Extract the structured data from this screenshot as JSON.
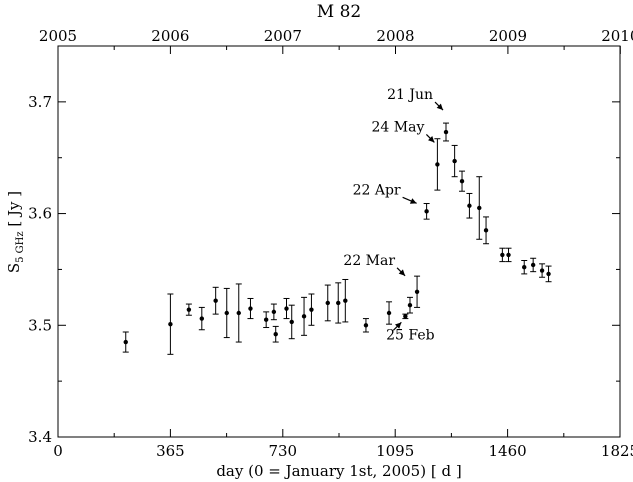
{
  "chart_data": {
    "type": "scatter",
    "title": "M 82",
    "xlabel": "day (0 = January 1st, 2005) [ d ]",
    "ylabel_main": "S",
    "ylabel_sub": "5 GHz",
    "ylabel_unit": " [ Jy ]",
    "xlim": [
      0,
      1825
    ],
    "ylim": [
      3.4,
      3.75
    ],
    "x_ticks": [
      0,
      365,
      730,
      1095,
      1460,
      1825
    ],
    "x_tick_labels": [
      "0",
      "365",
      "730",
      "1095",
      "1460",
      "1825"
    ],
    "y_ticks": [
      3.4,
      3.5,
      3.6,
      3.7
    ],
    "y_tick_labels": [
      "3.4",
      "3.5",
      "3.6",
      "3.7"
    ],
    "top_ticks": [
      0,
      365,
      730,
      1096,
      1461,
      1826
    ],
    "top_tick_labels": [
      "2005",
      "2006",
      "2007",
      "2008",
      "2009",
      "2010"
    ],
    "grid": false,
    "series": [
      {
        "points": [
          {
            "x": 220,
            "y": 3.485,
            "err": 0.009
          },
          {
            "x": 365,
            "y": 3.501,
            "err": 0.027
          },
          {
            "x": 425,
            "y": 3.514,
            "err": 0.005
          },
          {
            "x": 467,
            "y": 3.506,
            "err": 0.01
          },
          {
            "x": 512,
            "y": 3.522,
            "err": 0.012
          },
          {
            "x": 548,
            "y": 3.511,
            "err": 0.022
          },
          {
            "x": 587,
            "y": 3.511,
            "err": 0.026
          },
          {
            "x": 625,
            "y": 3.515,
            "err": 0.009
          },
          {
            "x": 676,
            "y": 3.505,
            "err": 0.007
          },
          {
            "x": 701,
            "y": 3.512,
            "err": 0.007
          },
          {
            "x": 707,
            "y": 3.492,
            "err": 0.007
          },
          {
            "x": 742,
            "y": 3.515,
            "err": 0.009
          },
          {
            "x": 759,
            "y": 3.503,
            "err": 0.015
          },
          {
            "x": 799,
            "y": 3.508,
            "err": 0.017
          },
          {
            "x": 823,
            "y": 3.514,
            "err": 0.014
          },
          {
            "x": 876,
            "y": 3.52,
            "err": 0.016
          },
          {
            "x": 910,
            "y": 3.52,
            "err": 0.018
          },
          {
            "x": 933,
            "y": 3.522,
            "err": 0.019
          },
          {
            "x": 1000,
            "y": 3.5,
            "err": 0.006
          },
          {
            "x": 1075,
            "y": 3.511,
            "err": 0.01
          },
          {
            "x": 1128,
            "y": 3.508,
            "err": 0.002
          },
          {
            "x": 1143,
            "y": 3.518,
            "err": 0.007
          },
          {
            "x": 1166,
            "y": 3.53,
            "err": 0.014
          },
          {
            "x": 1197,
            "y": 3.602,
            "err": 0.007
          },
          {
            "x": 1232,
            "y": 3.644,
            "err": 0.023
          },
          {
            "x": 1260,
            "y": 3.673,
            "err": 0.008
          },
          {
            "x": 1288,
            "y": 3.647,
            "err": 0.014
          },
          {
            "x": 1312,
            "y": 3.629,
            "err": 0.009
          },
          {
            "x": 1336,
            "y": 3.607,
            "err": 0.011
          },
          {
            "x": 1368,
            "y": 3.605,
            "err": 0.028
          },
          {
            "x": 1390,
            "y": 3.585,
            "err": 0.012
          },
          {
            "x": 1443,
            "y": 3.563,
            "err": 0.006
          },
          {
            "x": 1463,
            "y": 3.563,
            "err": 0.006
          },
          {
            "x": 1514,
            "y": 3.552,
            "err": 0.006
          },
          {
            "x": 1543,
            "y": 3.554,
            "err": 0.006
          },
          {
            "x": 1572,
            "y": 3.549,
            "err": 0.006
          },
          {
            "x": 1593,
            "y": 3.546,
            "err": 0.007
          }
        ]
      }
    ],
    "annotations": [
      {
        "text": "21 Jun",
        "point_x": 1260,
        "point_y": 3.673
      },
      {
        "text": "24 May",
        "point_x": 1232,
        "point_y": 3.644
      },
      {
        "text": "22 Apr",
        "point_x": 1197,
        "point_y": 3.602
      },
      {
        "text": "22 Mar",
        "point_x": 1166,
        "point_y": 3.53
      },
      {
        "text": "25 Feb",
        "point_x": 1128,
        "point_y": 3.508
      }
    ]
  }
}
